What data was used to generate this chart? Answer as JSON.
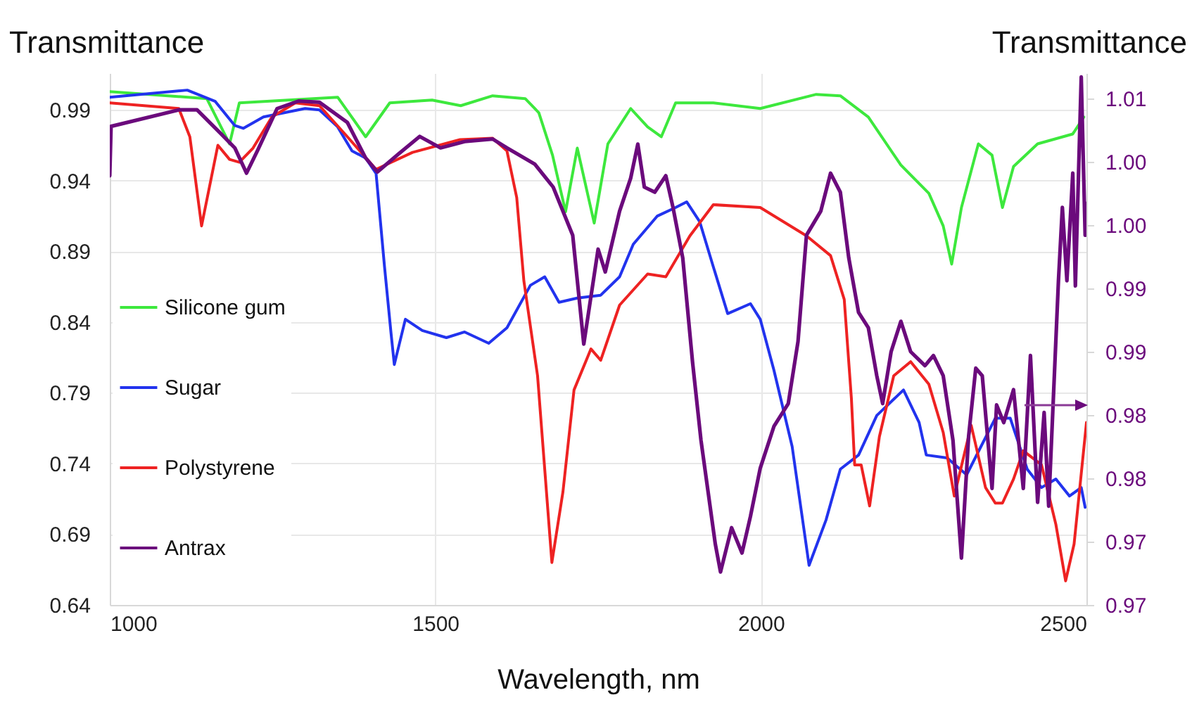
{
  "chart_data": {
    "type": "line",
    "xlabel": "Wavelength, nm",
    "ylabel": "Transmittance",
    "y2label": "Transmittance",
    "xlim": [
      1000,
      2500
    ],
    "xticks": [
      1000,
      1500,
      2000,
      2500
    ],
    "ylim": [
      0.64,
      1.016
    ],
    "yticks": [
      0.64,
      0.69,
      0.74,
      0.79,
      0.84,
      0.89,
      0.94,
      0.99
    ],
    "y2lim": [
      0.97,
      1.012
    ],
    "y2ticks": [
      {
        "value": 0.97,
        "label": "0.97"
      },
      {
        "value": 0.975,
        "label": "0.97"
      },
      {
        "value": 0.98,
        "label": "0.98"
      },
      {
        "value": 0.985,
        "label": "0.98"
      },
      {
        "value": 0.99,
        "label": "0.99"
      },
      {
        "value": 0.995,
        "label": "0.99"
      },
      {
        "value": 1.0,
        "label": "1.00"
      },
      {
        "value": 1.005,
        "label": "1.00"
      },
      {
        "value": 1.01,
        "label": "1.01"
      }
    ],
    "grid": true,
    "legend": "left",
    "series": [
      {
        "name": "Silicone gum",
        "color": "#3de83d",
        "x": [
          1000,
          1149,
          1184,
          1199,
          1350,
          1393,
          1430,
          1495,
          1539,
          1588,
          1638,
          1659,
          1680,
          1700,
          1718,
          1744,
          1765,
          1800,
          1826,
          1847,
          1869,
          1927,
          1999,
          2085,
          2122,
          2165,
          2215,
          2258,
          2280,
          2293,
          2308,
          2334,
          2355,
          2371,
          2388,
          2425,
          2479,
          2496
        ],
        "values": [
          1.003,
          0.998,
          0.966,
          0.995,
          0.999,
          0.971,
          0.995,
          0.997,
          0.993,
          1.0,
          0.998,
          0.988,
          0.958,
          0.918,
          0.963,
          0.91,
          0.966,
          0.991,
          0.978,
          0.971,
          0.995,
          0.995,
          0.991,
          1.001,
          1.0,
          0.985,
          0.951,
          0.931,
          0.908,
          0.881,
          0.921,
          0.966,
          0.958,
          0.921,
          0.95,
          0.966,
          0.973,
          0.985
        ]
      },
      {
        "name": "Sugar",
        "color": "#2233ee",
        "x": [
          1000,
          1119,
          1162,
          1192,
          1205,
          1236,
          1300,
          1322,
          1350,
          1372,
          1393,
          1409,
          1422,
          1432,
          1437,
          1454,
          1480,
          1517,
          1545,
          1582,
          1610,
          1646,
          1668,
          1690,
          1718,
          1754,
          1783,
          1804,
          1841,
          1869,
          1886,
          1906,
          1927,
          1949,
          1984,
          1999,
          2020,
          2048,
          2074,
          2100,
          2122,
          2150,
          2178,
          2219,
          2243,
          2254,
          2286,
          2316,
          2360,
          2383,
          2409,
          2431,
          2453,
          2474,
          2492,
          2498
        ],
        "values": [
          0.999,
          1.004,
          0.996,
          0.979,
          0.977,
          0.985,
          0.991,
          0.99,
          0.978,
          0.961,
          0.956,
          0.945,
          0.879,
          0.832,
          0.81,
          0.842,
          0.834,
          0.829,
          0.833,
          0.825,
          0.836,
          0.866,
          0.872,
          0.854,
          0.857,
          0.859,
          0.872,
          0.895,
          0.915,
          0.921,
          0.925,
          0.911,
          0.879,
          0.846,
          0.853,
          0.842,
          0.806,
          0.752,
          0.668,
          0.7,
          0.736,
          0.746,
          0.774,
          0.792,
          0.769,
          0.746,
          0.744,
          0.732,
          0.772,
          0.772,
          0.736,
          0.723,
          0.729,
          0.717,
          0.723,
          0.709
        ]
      },
      {
        "name": "Polystyrene",
        "color": "#ee2222",
        "x": [
          1000,
          1106,
          1123,
          1141,
          1166,
          1184,
          1199,
          1220,
          1249,
          1285,
          1322,
          1365,
          1409,
          1465,
          1538,
          1588,
          1610,
          1625,
          1636,
          1657,
          1679,
          1696,
          1713,
          1739,
          1754,
          1783,
          1826,
          1854,
          1891,
          1927,
          1999,
          2070,
          2107,
          2128,
          2139,
          2144,
          2154,
          2167,
          2182,
          2204,
          2230,
          2258,
          2280,
          2297,
          2323,
          2345,
          2360,
          2371,
          2388,
          2403,
          2431,
          2453,
          2468,
          2481,
          2500
        ],
        "values": [
          0.995,
          0.991,
          0.971,
          0.908,
          0.965,
          0.955,
          0.953,
          0.963,
          0.985,
          0.995,
          0.993,
          0.971,
          0.948,
          0.96,
          0.969,
          0.97,
          0.961,
          0.928,
          0.869,
          0.802,
          0.67,
          0.72,
          0.792,
          0.821,
          0.813,
          0.852,
          0.874,
          0.872,
          0.901,
          0.923,
          0.921,
          0.901,
          0.887,
          0.856,
          0.786,
          0.739,
          0.739,
          0.71,
          0.759,
          0.802,
          0.812,
          0.796,
          0.762,
          0.717,
          0.767,
          0.723,
          0.712,
          0.712,
          0.729,
          0.749,
          0.739,
          0.697,
          0.657,
          0.683,
          0.769
        ]
      },
      {
        "name": "Antrax",
        "color": "#6b0a7c",
        "axis": "y2",
        "x": [
          1000,
          1002,
          1106,
          1134,
          1171,
          1192,
          1210,
          1227,
          1257,
          1290,
          1322,
          1365,
          1393,
          1411,
          1443,
          1476,
          1508,
          1545,
          1588,
          1610,
          1653,
          1681,
          1711,
          1728,
          1750,
          1761,
          1783,
          1800,
          1811,
          1821,
          1837,
          1854,
          1865,
          1880,
          1895,
          1908,
          1919,
          1930,
          1938,
          1955,
          1971,
          1984,
          1999,
          2020,
          2042,
          2057,
          2070,
          2092,
          2107,
          2122,
          2135,
          2150,
          2165,
          2178,
          2187,
          2200,
          2215,
          2230,
          2252,
          2265,
          2280,
          2295,
          2308,
          2319,
          2330,
          2340,
          2355,
          2362,
          2373,
          2388,
          2403,
          2414,
          2425,
          2435,
          2442,
          2457,
          2463,
          2470,
          2479,
          2483,
          2492,
          2498,
          2500
        ],
        "values": [
          1.0039,
          1.0078,
          1.0091,
          1.0091,
          1.0072,
          1.0061,
          1.0041,
          1.0059,
          1.0092,
          1.0098,
          1.0097,
          1.0081,
          1.0053,
          1.0042,
          1.0056,
          1.007,
          1.0061,
          1.0066,
          1.0068,
          1.0061,
          1.0048,
          1.003,
          0.9992,
          0.9906,
          0.9981,
          0.9963,
          1.0011,
          1.0037,
          1.0064,
          1.003,
          1.0026,
          1.0039,
          1.0014,
          0.9974,
          0.9892,
          0.983,
          0.9789,
          0.9748,
          0.9726,
          0.9761,
          0.9741,
          0.977,
          0.9808,
          0.9841,
          0.9859,
          0.9908,
          0.9992,
          1.0011,
          1.0041,
          1.0026,
          0.9974,
          0.9931,
          0.9919,
          0.9881,
          0.9859,
          0.99,
          0.9924,
          0.99,
          0.9889,
          0.9897,
          0.9881,
          0.983,
          0.9737,
          0.9833,
          0.9887,
          0.9881,
          0.9792,
          0.9858,
          0.9844,
          0.987,
          0.9792,
          0.9897,
          0.9781,
          0.9852,
          0.9778,
          0.9956,
          1.0014,
          0.9956,
          1.0041,
          0.9952,
          1.0117,
          0.9992,
          1.0017
        ]
      }
    ]
  }
}
